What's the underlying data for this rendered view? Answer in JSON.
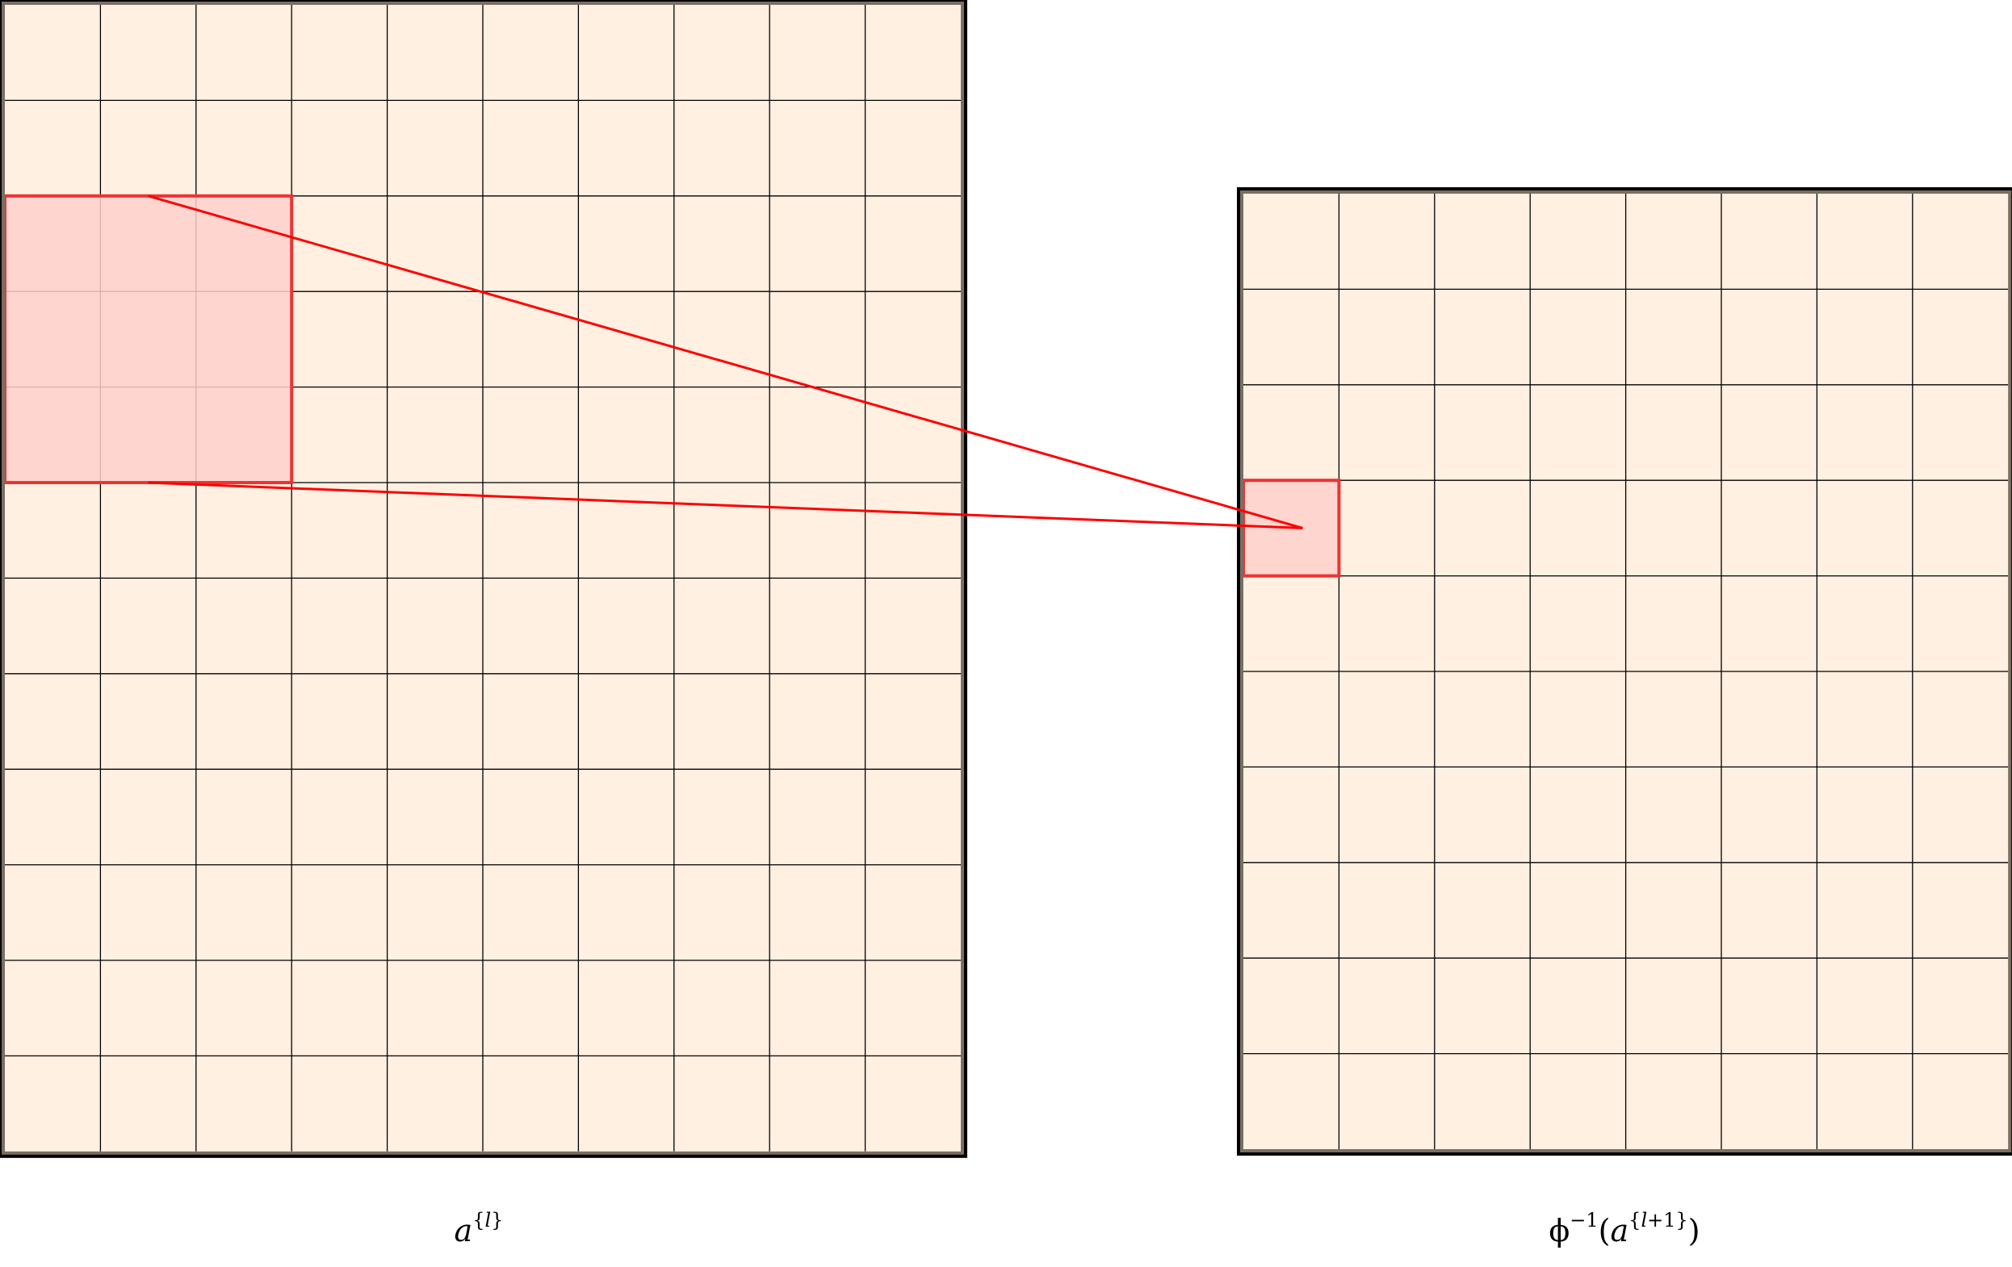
{
  "diagram": {
    "left_grid": {
      "label": "a^{l}",
      "columns": 10,
      "rows": 12,
      "highlight": {
        "col": 0,
        "row": 2,
        "size": 3
      }
    },
    "right_grid": {
      "label": "ϕ^{-1}(a^{l+1})",
      "columns": 8,
      "rows": 10,
      "highlight": {
        "col": 0,
        "row": 3,
        "size": 1
      }
    },
    "colors": {
      "cell_fill": "#fff0e2",
      "grid_line": "#000000",
      "highlight_fill": "#ffd0cc",
      "highlight_stroke": "#ee3333",
      "connector": "#ff0000"
    }
  }
}
